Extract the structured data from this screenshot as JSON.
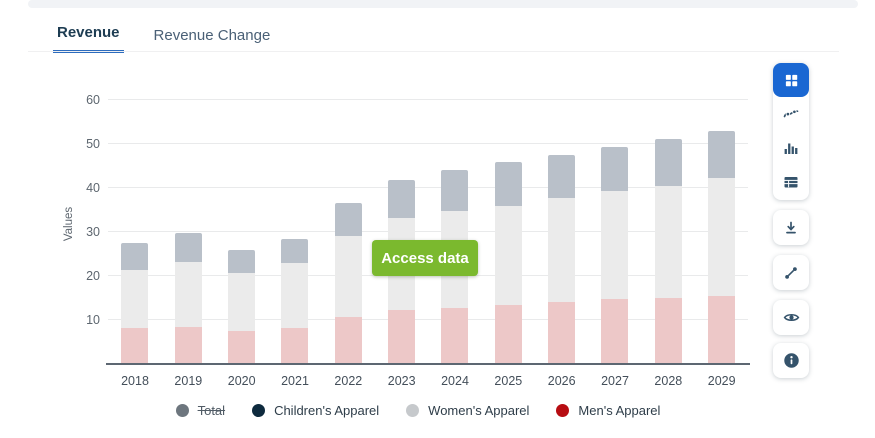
{
  "tabs": [
    {
      "label": "Revenue",
      "active": true
    },
    {
      "label": "Revenue Change",
      "active": false
    }
  ],
  "chart_data": {
    "type": "bar",
    "stacked": true,
    "title": "",
    "xlabel": "",
    "ylabel": "Values",
    "categories": [
      "2018",
      "2019",
      "2020",
      "2021",
      "2022",
      "2023",
      "2024",
      "2025",
      "2026",
      "2027",
      "2028",
      "2029"
    ],
    "series": [
      {
        "name": "Men's Apparel",
        "bar_color": "#edc8c8",
        "legend_color": "#b70d12",
        "values": [
          8.2,
          8.4,
          7.5,
          8.2,
          10.7,
          12.3,
          12.7,
          13.4,
          14.1,
          14.8,
          15.0,
          15.5
        ]
      },
      {
        "name": "Women's Apparel",
        "bar_color": "#ebebeb",
        "legend_color": "#c6c9cc",
        "values": [
          13.2,
          14.8,
          13.3,
          14.8,
          18.4,
          20.9,
          22.1,
          22.5,
          23.6,
          24.5,
          25.5,
          26.8
        ]
      },
      {
        "name": "Children's Apparel",
        "bar_color": "#b9c0c9",
        "legend_color": "#0e2a3e",
        "values": [
          6.1,
          6.6,
          5.1,
          5.4,
          7.5,
          8.6,
          9.3,
          10.0,
          9.8,
          10.0,
          10.6,
          10.7
        ]
      }
    ],
    "totals": [
      27.5,
      29.8,
      25.9,
      28.4,
      36.6,
      41.8,
      44.1,
      45.9,
      47.5,
      49.3,
      51.1,
      53.0
    ],
    "yticks": [
      10,
      20,
      30,
      40,
      50,
      60
    ],
    "ylim": [
      0,
      65.5
    ],
    "grid": true,
    "legend_position": "bottom"
  },
  "legend": {
    "items": [
      {
        "label": "Total",
        "color": "#6d767e",
        "disabled": true
      },
      {
        "label": "Children's Apparel",
        "color": "#0e2a3e",
        "disabled": false
      },
      {
        "label": "Women's Apparel",
        "color": "#c6c9cc",
        "disabled": false
      },
      {
        "label": "Men's Apparel",
        "color": "#b70d12",
        "disabled": false
      }
    ]
  },
  "access_button": {
    "label": "Access data",
    "color": "#7bb92e"
  },
  "toolbar": {
    "accent_color": "#1a67d2",
    "icon_color": "#35536b",
    "buttons": [
      {
        "icon": "grid-icon",
        "active": true
      },
      {
        "icon": "line-chart-icon",
        "active": false
      },
      {
        "icon": "column-chart-icon",
        "active": false
      },
      {
        "icon": "table-icon",
        "active": false
      },
      {
        "icon": "download-icon",
        "active": false
      },
      {
        "icon": "expand-icon",
        "active": false
      },
      {
        "icon": "eye-icon",
        "active": false
      },
      {
        "icon": "info-icon",
        "active": false
      }
    ]
  }
}
